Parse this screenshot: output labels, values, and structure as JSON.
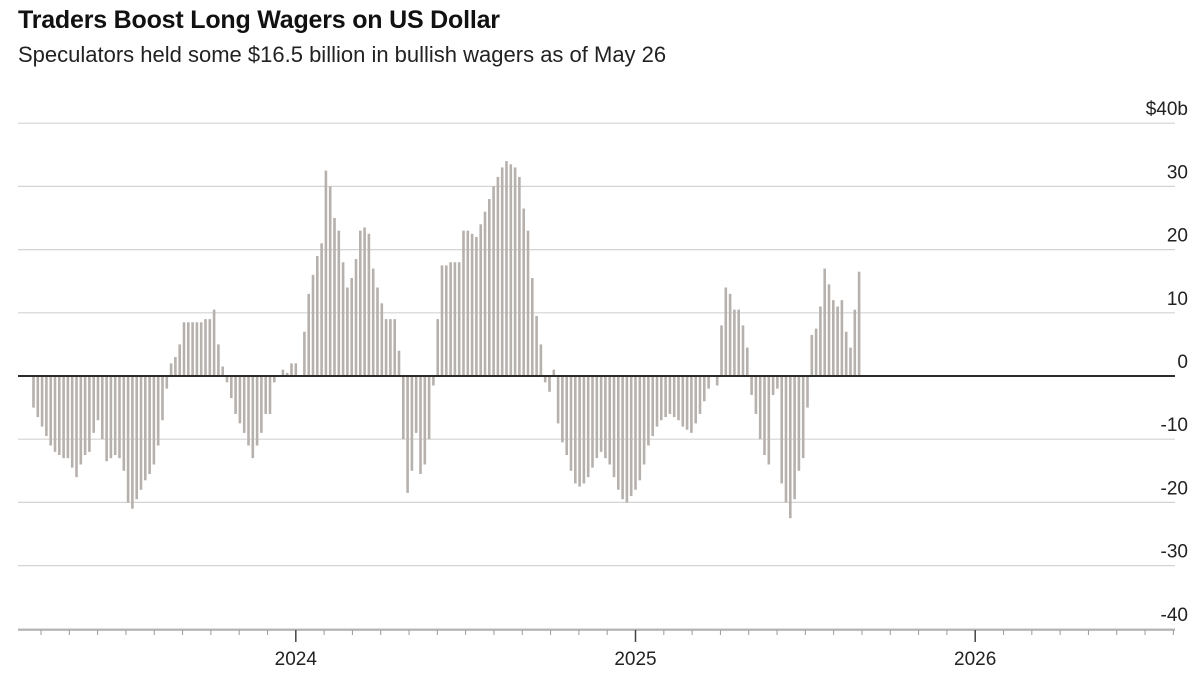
{
  "colors": {
    "bar": "#b7b1ad",
    "bar_latest": "#ecaa3a",
    "bar_previous": "#7d87c4",
    "highlight_box": "#d21f2b",
    "gridline": "#d4d4d4",
    "zero_line": "#2b2b2b"
  },
  "chart_data": {
    "type": "bar",
    "title": "Traders Boost Long Wagers on US Dollar",
    "subtitle": "Speculators held some $16.5 billion in bullish wagers as of May 26",
    "ylim": [
      -40,
      40
    ],
    "yticks": [
      {
        "value": 40,
        "label": "$40b"
      },
      {
        "value": 30,
        "label": "30"
      },
      {
        "value": 20,
        "label": "20"
      },
      {
        "value": 10,
        "label": "10"
      },
      {
        "value": 0,
        "label": "0"
      },
      {
        "value": -10,
        "label": "-10"
      },
      {
        "value": -20,
        "label": "-20"
      },
      {
        "value": -30,
        "label": "-30"
      },
      {
        "value": -40,
        "label": "-40"
      }
    ],
    "xticks": [
      {
        "index": 61,
        "label": "2024"
      },
      {
        "index": 140,
        "label": "2025"
      },
      {
        "index": 219,
        "label": "2026"
      }
    ],
    "grid": true,
    "highlight_index": 251,
    "values": [
      -5,
      -6.5,
      -8,
      -9.5,
      -11,
      -12,
      -12.5,
      -13,
      -13,
      -14.5,
      -16,
      -14,
      -12.5,
      -12,
      -9,
      -7,
      -10,
      -13.5,
      -13,
      -12.5,
      -13,
      -15,
      -20,
      -21,
      -19.5,
      -18,
      -16.5,
      -15.5,
      -14,
      -11,
      -7,
      -2,
      2,
      3,
      5,
      8.5,
      8.5,
      8.5,
      8.5,
      8.5,
      9,
      9,
      10.5,
      5,
      1.5,
      -1,
      -3.5,
      -6,
      -7.5,
      -9,
      -11,
      -13,
      -11,
      -9,
      -6,
      -6,
      -1,
      0,
      1,
      0.5,
      2,
      2,
      0,
      7,
      13,
      16,
      19,
      21,
      32.5,
      30,
      25,
      23,
      18,
      14,
      15.5,
      18.5,
      23,
      23.5,
      22.5,
      17,
      14,
      11.5,
      9,
      9,
      9,
      4,
      -10,
      -18.5,
      -15,
      -9,
      -15.5,
      -14,
      -10,
      -1.5,
      9,
      17.5,
      17.5,
      18,
      18,
      18,
      23,
      23,
      22.5,
      22,
      24,
      26,
      28,
      30,
      31.5,
      33,
      34,
      33.5,
      33,
      31.5,
      26.5,
      23,
      15.5,
      9.5,
      5,
      -1,
      -2.5,
      1,
      -7.5,
      -10.5,
      -12.5,
      -15,
      -17,
      -17.5,
      -17,
      -16,
      -14.5,
      -13,
      -12,
      -13,
      -14,
      -16,
      -18,
      -19.5,
      -20,
      -19,
      -18,
      -16.5,
      -14,
      -11,
      -9.5,
      -8,
      -7,
      -6.5,
      -6,
      -6.5,
      -7,
      -8,
      -8.5,
      -9,
      -7.5,
      -6,
      -4,
      -2,
      0,
      -1.5,
      8,
      14,
      13,
      10.5,
      10.5,
      8,
      4.5,
      -3,
      -6,
      -10,
      -12.5,
      -14,
      -3,
      -2,
      -17,
      -20,
      -22.5,
      -19.5,
      -15,
      -13,
      -5,
      6.5,
      7.5,
      11,
      17,
      14.5,
      12,
      11,
      12,
      7,
      4.5,
      10.5,
      16.5
    ]
  }
}
